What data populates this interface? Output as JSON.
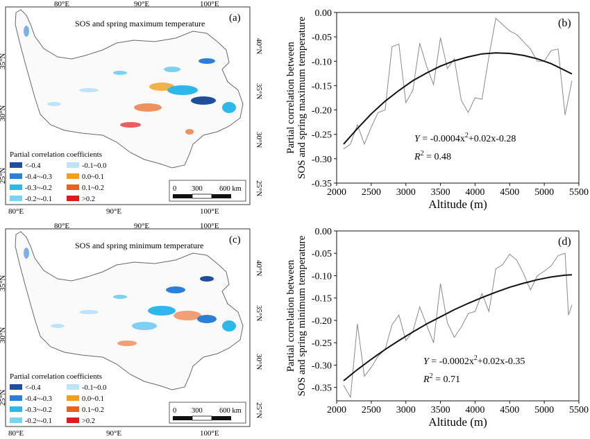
{
  "maps": [
    {
      "label": "(a)",
      "title": "SOS and spring maximum temperature",
      "top_lon": [
        "80°E",
        "90°E",
        "100°E"
      ],
      "bottom_lon": [
        "80°E",
        "90°E",
        "100°E"
      ],
      "left_lat": [
        "35°N",
        "30°N",
        "25°N"
      ],
      "right_lat": [
        "40°N",
        "35°N",
        "30°N",
        "25°N"
      ]
    },
    {
      "label": "(c)",
      "title": "SOS and spring minimum temperature",
      "top_lon": [
        "80°E",
        "90°E",
        "100°E"
      ],
      "bottom_lon": [
        "80°E",
        "90°E",
        "100°E"
      ],
      "left_lat": [
        "35°N",
        "30°N",
        "25°N"
      ],
      "right_lat": [
        "40°N",
        "35°N",
        "30°N",
        "25°N"
      ]
    }
  ],
  "legend": {
    "title": "Partial correlation coefficients",
    "items": [
      {
        "label": "<-0.4",
        "color": "#1f4e9a"
      },
      {
        "label": "-0.1~0.0",
        "color": "#bfe3f7"
      },
      {
        "label": "-0.4~-0.3",
        "color": "#2d7fd6"
      },
      {
        "label": "0.0~0.1",
        "color": "#f0a01c"
      },
      {
        "label": "-0.3~-0.2",
        "color": "#2fb7e9"
      },
      {
        "label": "0.1~0.2",
        "color": "#e8641e"
      },
      {
        "label": "-0.2~-0.1",
        "color": "#7dd0f2"
      },
      {
        "label": ">0.2",
        "color": "#e11b1b"
      }
    ]
  },
  "scale_bar": {
    "ticks": [
      "0",
      "300",
      "600 km"
    ]
  },
  "chart_data": [
    {
      "type": "line",
      "label": "(b)",
      "ylabel_line1": "Partial correlation between",
      "ylabel_line2": "SOS and spring maximum temperature",
      "xlabel": "Altitude (m)",
      "xlim": [
        2000,
        5500
      ],
      "ylim": [
        -0.35,
        0.0
      ],
      "xticks": [
        2000,
        2500,
        3000,
        3500,
        4000,
        4500,
        5000,
        5500
      ],
      "yticks": [
        "0.00",
        "-0.05",
        "-0.10",
        "-0.15",
        "-0.20",
        "-0.25",
        "-0.30",
        "-0.35"
      ],
      "equation_prefix": "Y",
      "equation_body": " = -0.0004x",
      "equation_sup": "2",
      "equation_suffix": "+0.02x-0.28",
      "r2_prefix": "R",
      "r2_sup": "2",
      "r2_value": " = 0.48",
      "series": [
        {
          "x": [
            2100,
            2200,
            2300,
            2400,
            2500,
            2600,
            2700,
            2800,
            2900,
            3000,
            3100,
            3200,
            3300,
            3400,
            3500,
            3600,
            3700,
            3800,
            3900,
            4000,
            4100,
            4200,
            4300,
            4400,
            4500,
            4600,
            4700,
            4800,
            4900,
            5000,
            5100,
            5200,
            5300,
            5400
          ],
          "y": [
            -0.28,
            -0.27,
            -0.23,
            -0.27,
            -0.235,
            -0.205,
            -0.2,
            -0.07,
            -0.065,
            -0.185,
            -0.16,
            -0.063,
            -0.11,
            -0.148,
            -0.052,
            -0.115,
            -0.095,
            -0.18,
            -0.205,
            -0.175,
            -0.178,
            -0.09,
            -0.012,
            -0.025,
            -0.038,
            -0.045,
            -0.06,
            -0.075,
            -0.1,
            -0.1,
            -0.078,
            -0.075,
            -0.21,
            -0.14
          ]
        },
        {
          "fit": true,
          "x": [
            2100,
            2300,
            2500,
            2700,
            2900,
            3100,
            3300,
            3500,
            3700,
            3900,
            4100,
            4300,
            4500,
            4700,
            4900,
            5100,
            5300,
            5400
          ],
          "y": [
            -0.27,
            -0.238,
            -0.208,
            -0.182,
            -0.16,
            -0.14,
            -0.124,
            -0.11,
            -0.099,
            -0.091,
            -0.085,
            -0.083,
            -0.084,
            -0.088,
            -0.095,
            -0.105,
            -0.119,
            -0.126
          ]
        }
      ]
    },
    {
      "type": "line",
      "label": "(d)",
      "ylabel_line1": "Partial correlation between",
      "ylabel_line2": "SOS and spring minimum temperature",
      "xlabel": "Altitude (m)",
      "xlim": [
        2000,
        5500
      ],
      "ylim": [
        -0.38,
        0.0
      ],
      "xticks": [
        2000,
        2500,
        3000,
        3500,
        4000,
        4500,
        5000,
        5500
      ],
      "yticks": [
        "0.00",
        "-0.05",
        "-0.10",
        "-0.15",
        "-0.20",
        "-0.25",
        "-0.30",
        "-0.35"
      ],
      "equation_prefix": "Y",
      "equation_body": " = -0.0002x",
      "equation_sup": "2",
      "equation_suffix": "+0.02x-0.35",
      "r2_prefix": "R",
      "r2_sup": "2",
      "r2_value": " = 0.71",
      "series": [
        {
          "x": [
            2100,
            2200,
            2300,
            2400,
            2500,
            2600,
            2700,
            2800,
            2900,
            3000,
            3100,
            3200,
            3300,
            3400,
            3500,
            3600,
            3700,
            3800,
            3900,
            4000,
            4100,
            4200,
            4300,
            4400,
            4500,
            4600,
            4700,
            4800,
            4900,
            5000,
            5100,
            5200,
            5300,
            5350,
            5400
          ],
          "y": [
            -0.345,
            -0.372,
            -0.208,
            -0.325,
            -0.305,
            -0.28,
            -0.265,
            -0.21,
            -0.188,
            -0.245,
            -0.225,
            -0.17,
            -0.21,
            -0.25,
            -0.118,
            -0.205,
            -0.238,
            -0.215,
            -0.185,
            -0.18,
            -0.14,
            -0.18,
            -0.085,
            -0.075,
            -0.052,
            -0.065,
            -0.095,
            -0.132,
            -0.1,
            -0.09,
            -0.078,
            -0.055,
            -0.05,
            -0.188,
            -0.165
          ]
        },
        {
          "fit": true,
          "x": [
            2100,
            2300,
            2500,
            2700,
            2900,
            3100,
            3300,
            3500,
            3700,
            3900,
            4100,
            4300,
            4500,
            4700,
            4900,
            5100,
            5300,
            5400
          ],
          "y": [
            -0.335,
            -0.31,
            -0.287,
            -0.265,
            -0.245,
            -0.226,
            -0.208,
            -0.192,
            -0.176,
            -0.162,
            -0.149,
            -0.137,
            -0.126,
            -0.117,
            -0.109,
            -0.103,
            -0.099,
            -0.098
          ]
        }
      ]
    }
  ]
}
